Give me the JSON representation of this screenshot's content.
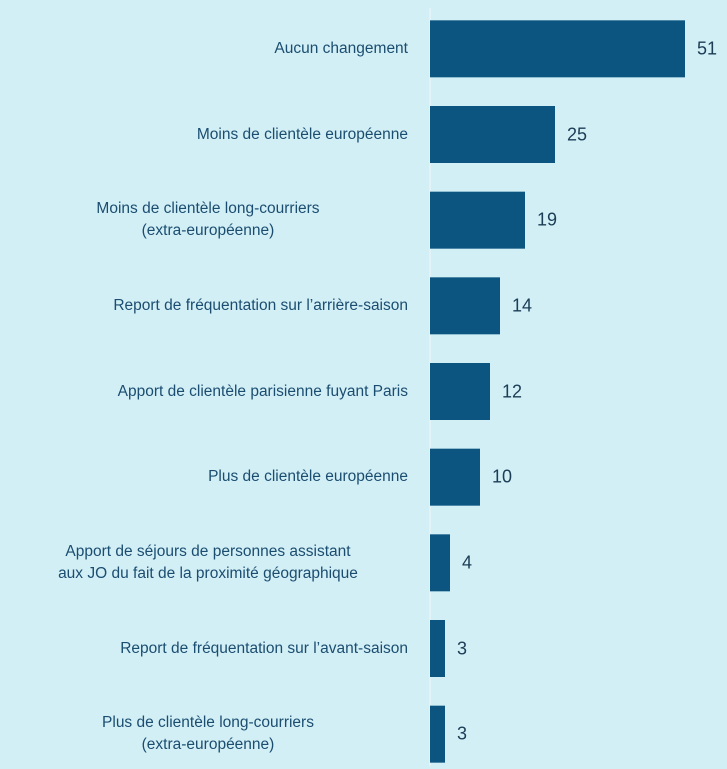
{
  "chart_data": {
    "type": "bar",
    "orientation": "horizontal",
    "categories": [
      "Aucun changement",
      "Moins de clientèle européenne",
      "Moins de clientèle long-courriers\n(extra-européenne)",
      "Report de fréquentation sur l’arrière-saison",
      "Apport de clientèle parisienne fuyant Paris",
      "Plus de clientèle européenne",
      "Apport de séjours de personnes assistant\naux JO du fait de la proximité géographique",
      "Report de fréquentation sur l’avant-saison",
      "Plus de clientèle long-courriers\n(extra-européenne)"
    ],
    "values": [
      51,
      25,
      19,
      14,
      12,
      10,
      4,
      3,
      3
    ],
    "color": "#0b5580",
    "xlim": [
      0,
      58
    ]
  }
}
